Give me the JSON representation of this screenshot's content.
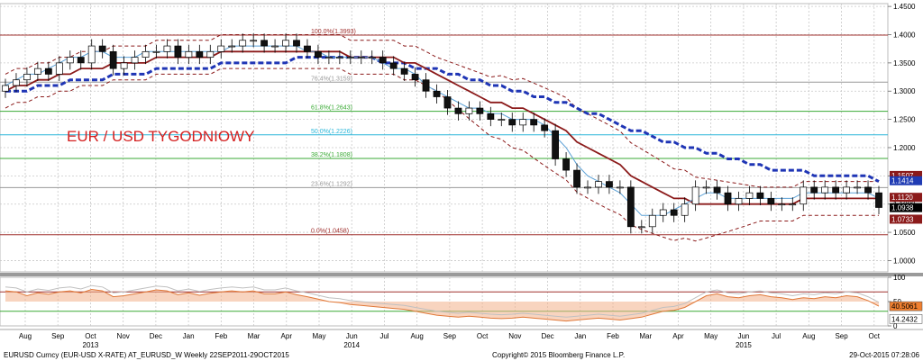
{
  "chart_data": {
    "type": "candlestick",
    "title": "EUR / USD TYGODNIOWY",
    "x_month_ticks": [
      "Aug",
      "Sep",
      "Oct",
      "Nov",
      "Dec",
      "Jan",
      "Feb",
      "Mar",
      "Apr",
      "May",
      "Jun",
      "Jul",
      "Aug",
      "Sep",
      "Oct",
      "Nov",
      "Dec",
      "Jan",
      "Feb",
      "Mar",
      "Apr",
      "May",
      "Jun",
      "Jul",
      "Aug",
      "Sep",
      "Oct"
    ],
    "x_year_ticks": [
      "2013",
      "2014",
      "2015"
    ],
    "y_ticks": [
      "1.4500",
      "1.4000",
      "1.3500",
      "1.3000",
      "1.2500",
      "1.2000",
      "1.1500",
      "1.1000",
      "1.0500",
      "1.0000"
    ],
    "ylim": [
      0.98,
      1.455
    ],
    "grid": true,
    "fibonacci_levels": [
      {
        "label": "100.0%(1.3993)",
        "value": 1.3993,
        "color": "#a0302e"
      },
      {
        "label": "76.4%(1.3159)",
        "value": 1.3159,
        "color": "#999999"
      },
      {
        "label": "61.8%(1.2643)",
        "value": 1.2643,
        "color": "#3aaa35"
      },
      {
        "label": "50.0%(1.2226)",
        "value": 1.2226,
        "color": "#29b6d9"
      },
      {
        "label": "38.2%(1.1808)",
        "value": 1.1808,
        "color": "#3aaa35"
      },
      {
        "label": "23.6%(1.1292)",
        "value": 1.1292,
        "color": "#999999"
      },
      {
        "label": "0.0%(1.0458)",
        "value": 1.0458,
        "color": "#a0302e"
      }
    ],
    "price_badges": [
      {
        "label": "1.1507",
        "value": 1.1507,
        "color": "#8b1a1a"
      },
      {
        "label": "1.1414",
        "value": 1.1414,
        "color": "#1f3bb3"
      },
      {
        "label": "1.1120",
        "value": 1.112,
        "color": "#8b1a1a"
      },
      {
        "label": "1.0938",
        "value": 1.0938,
        "color": "#000000"
      },
      {
        "label": "1.0733",
        "value": 1.0733,
        "color": "#8b1a1a"
      }
    ],
    "close": [
      1.31,
      1.32,
      1.33,
      1.34,
      1.33,
      1.35,
      1.36,
      1.35,
      1.38,
      1.37,
      1.34,
      1.35,
      1.36,
      1.37,
      1.37,
      1.38,
      1.36,
      1.37,
      1.36,
      1.37,
      1.38,
      1.38,
      1.39,
      1.39,
      1.38,
      1.38,
      1.39,
      1.38,
      1.37,
      1.36,
      1.36,
      1.36,
      1.36,
      1.36,
      1.36,
      1.35,
      1.34,
      1.33,
      1.32,
      1.3,
      1.29,
      1.27,
      1.26,
      1.27,
      1.26,
      1.25,
      1.25,
      1.24,
      1.25,
      1.24,
      1.23,
      1.18,
      1.16,
      1.13,
      1.13,
      1.14,
      1.13,
      1.13,
      1.06,
      1.06,
      1.08,
      1.09,
      1.08,
      1.1,
      1.13,
      1.13,
      1.12,
      1.1,
      1.11,
      1.12,
      1.11,
      1.1,
      1.1,
      1.1,
      1.13,
      1.12,
      1.13,
      1.12,
      1.13,
      1.13,
      1.12,
      1.094
    ],
    "sma_blue": [
      1.31,
      1.32,
      1.33,
      1.33,
      1.34,
      1.35,
      1.36,
      1.36,
      1.37,
      1.37,
      1.36,
      1.36,
      1.36,
      1.37,
      1.37,
      1.37,
      1.37,
      1.37,
      1.37,
      1.37,
      1.37,
      1.38,
      1.38,
      1.38,
      1.38,
      1.38,
      1.38,
      1.38,
      1.37,
      1.37,
      1.36,
      1.36,
      1.36,
      1.36,
      1.36,
      1.35,
      1.34,
      1.34,
      1.33,
      1.31,
      1.3,
      1.29,
      1.28,
      1.27,
      1.27,
      1.26,
      1.26,
      1.25,
      1.25,
      1.25,
      1.24,
      1.22,
      1.2,
      1.17,
      1.15,
      1.14,
      1.13,
      1.12,
      1.1,
      1.08,
      1.08,
      1.08,
      1.09,
      1.1,
      1.11,
      1.12,
      1.12,
      1.11,
      1.11,
      1.11,
      1.11,
      1.11,
      1.11,
      1.11,
      1.12,
      1.12,
      1.12,
      1.12,
      1.12,
      1.12,
      1.12,
      1.11
    ],
    "sma_red": [
      1.3,
      1.31,
      1.31,
      1.32,
      1.32,
      1.33,
      1.33,
      1.34,
      1.34,
      1.34,
      1.35,
      1.35,
      1.35,
      1.35,
      1.36,
      1.36,
      1.36,
      1.36,
      1.36,
      1.36,
      1.37,
      1.37,
      1.37,
      1.37,
      1.37,
      1.37,
      1.37,
      1.37,
      1.37,
      1.37,
      1.37,
      1.37,
      1.36,
      1.36,
      1.36,
      1.36,
      1.36,
      1.35,
      1.35,
      1.34,
      1.33,
      1.32,
      1.31,
      1.3,
      1.29,
      1.28,
      1.28,
      1.27,
      1.27,
      1.26,
      1.25,
      1.24,
      1.23,
      1.21,
      1.2,
      1.19,
      1.18,
      1.17,
      1.15,
      1.14,
      1.13,
      1.12,
      1.11,
      1.11,
      1.1,
      1.1,
      1.1,
      1.1,
      1.1,
      1.1,
      1.1,
      1.1,
      1.1,
      1.1,
      1.11,
      1.11,
      1.11,
      1.11,
      1.11,
      1.11,
      1.11,
      1.11
    ],
    "sma_dash_blue": [
      1.3,
      1.3,
      1.3,
      1.31,
      1.31,
      1.31,
      1.32,
      1.32,
      1.32,
      1.32,
      1.33,
      1.33,
      1.33,
      1.33,
      1.34,
      1.34,
      1.34,
      1.34,
      1.34,
      1.34,
      1.35,
      1.35,
      1.35,
      1.35,
      1.35,
      1.35,
      1.35,
      1.36,
      1.36,
      1.36,
      1.36,
      1.36,
      1.36,
      1.36,
      1.36,
      1.35,
      1.35,
      1.35,
      1.34,
      1.34,
      1.34,
      1.33,
      1.33,
      1.32,
      1.32,
      1.31,
      1.31,
      1.3,
      1.3,
      1.29,
      1.29,
      1.28,
      1.28,
      1.27,
      1.26,
      1.26,
      1.25,
      1.24,
      1.23,
      1.23,
      1.22,
      1.21,
      1.21,
      1.2,
      1.2,
      1.19,
      1.19,
      1.18,
      1.18,
      1.17,
      1.17,
      1.16,
      1.16,
      1.16,
      1.16,
      1.15,
      1.15,
      1.15,
      1.15,
      1.15,
      1.15,
      1.14
    ],
    "osc_ticks": [
      "100",
      "50",
      "0"
    ],
    "osc_levels": [
      70,
      30
    ],
    "osc_badges": [
      {
        "label": "40.5061",
        "value": 40.5,
        "color": "#f08030"
      },
      {
        "label": "14.2432",
        "value": 14.2,
        "color": "#ffffff"
      }
    ],
    "osc_rsi": [
      72,
      70,
      62,
      68,
      65,
      70,
      72,
      68,
      75,
      72,
      60,
      62,
      66,
      70,
      74,
      72,
      64,
      68,
      63,
      67,
      70,
      72,
      70,
      72,
      66,
      66,
      70,
      64,
      60,
      55,
      50,
      48,
      44,
      42,
      40,
      38,
      36,
      34,
      30,
      26,
      22,
      20,
      18,
      20,
      18,
      16,
      15,
      16,
      18,
      16,
      14,
      12,
      10,
      12,
      14,
      16,
      14,
      12,
      15,
      18,
      24,
      30,
      32,
      38,
      50,
      62,
      66,
      60,
      58,
      62,
      64,
      60,
      58,
      54,
      58,
      56,
      60,
      58,
      62,
      60,
      52,
      40.5
    ]
  },
  "footer": {
    "left": "EURUSD Curncy (EUR-USD X-RATE) AT_EURUSD_W  Weekly 22SEP2011-29OCT2015",
    "center": "Copyright© 2015 Bloomberg Finance L.P.",
    "right": "29-Oct-2015 07:28:06"
  }
}
